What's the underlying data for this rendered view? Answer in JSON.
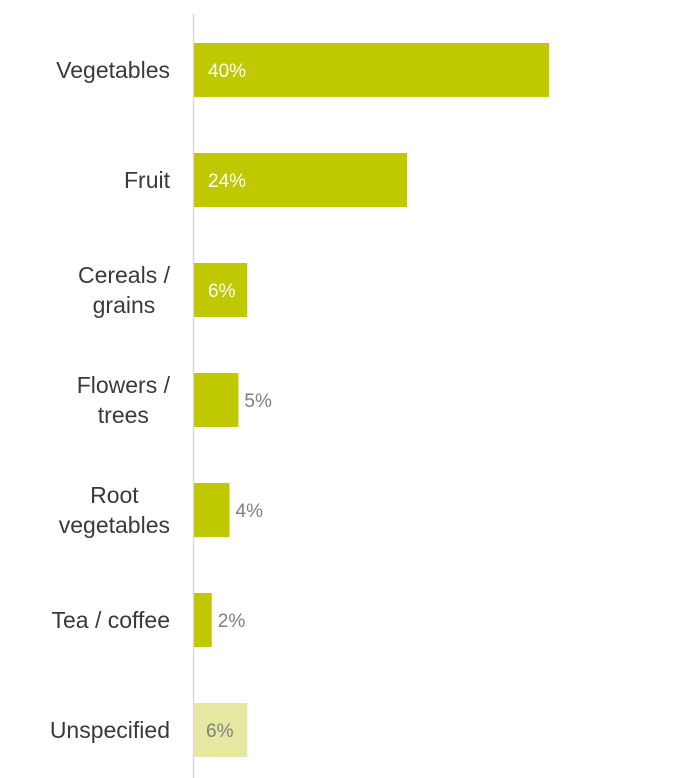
{
  "chart_data": {
    "type": "bar",
    "orientation": "horizontal",
    "categories": [
      "Vegetables",
      "Fruit",
      "Cereals / grains",
      "Flowers / trees",
      "Root vegetables",
      "Tea / coffee",
      "Unspecified"
    ],
    "category_lines": [
      [
        "Vegetables"
      ],
      [
        "Fruit"
      ],
      [
        "Cereals /",
        "grains"
      ],
      [
        "Flowers /",
        "trees"
      ],
      [
        "Root",
        "vegetables"
      ],
      [
        "Tea / coffee"
      ],
      [
        "Unspecified"
      ]
    ],
    "values": [
      40,
      24,
      6,
      5,
      4,
      2,
      6
    ],
    "value_labels": [
      "40%",
      "24%",
      "6%",
      "5%",
      "4%",
      "2%",
      "6%"
    ],
    "xlim": [
      0,
      50
    ],
    "title": "",
    "xlabel": "",
    "ylabel": "",
    "grid": false,
    "legend": "none",
    "colors": {
      "bar": "#bfc800",
      "bar_unspecified": "#e4e8a0",
      "label_inside": "#ffffff",
      "label_outside": "#7f7f7f",
      "axis": "#d9d9d9",
      "text": "#3a3a3a"
    }
  }
}
